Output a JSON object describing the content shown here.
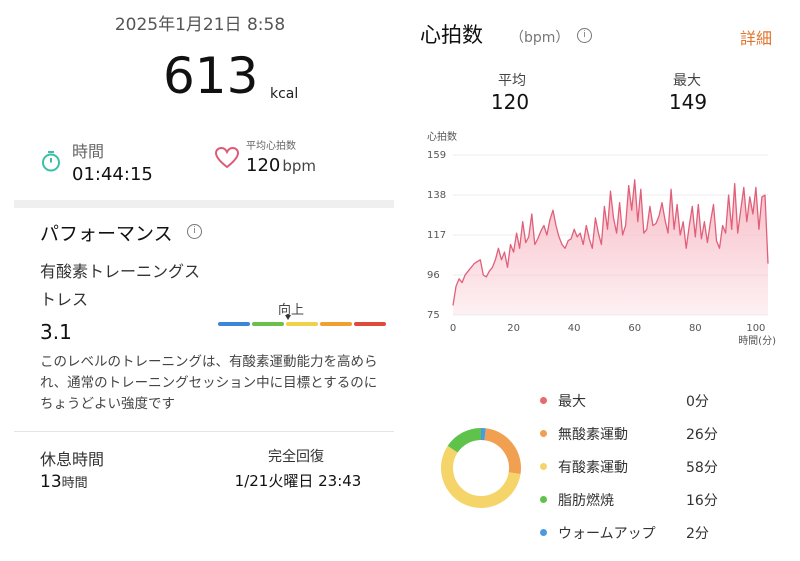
{
  "summary": {
    "datetime": "2025年1月21日 8:58",
    "calories": "613",
    "calories_unit": "kcal",
    "time_label": "時間",
    "time_value": "01:44:15",
    "avg_hr_label": "平均心拍数",
    "avg_hr_value": "120",
    "avg_hr_unit": "bpm"
  },
  "performance": {
    "title": "パフォーマンス",
    "stress_label": "有酸素トレーニングストレス",
    "stress_value": "3.1",
    "scale_label": "向上",
    "scale_colors": [
      "#3a86d8",
      "#6cc04a",
      "#f0d24a",
      "#f0a030",
      "#e04a3a"
    ],
    "description": "このレベルのトレーニングは、有酸素運動能力を高められ、通常のトレーニングセッション中に目標とするのにちょうどよい強度です",
    "rest_label": "休息時間",
    "rest_value": "13",
    "rest_unit": "時間",
    "recovery_label": "完全回復",
    "recovery_value": "1/21火曜日 23:43"
  },
  "heart_rate": {
    "title": "心拍数",
    "unit": "（bpm）",
    "detail_link": "詳細",
    "avg_label": "平均",
    "avg_value": "120",
    "max_label": "最大",
    "max_value": "149"
  },
  "chart_data": {
    "type": "area",
    "ylabel": "心拍数",
    "xlabel": "時間(分)",
    "yticks": [
      75,
      96,
      117,
      138,
      159
    ],
    "xticks": [
      0,
      20,
      40,
      60,
      80,
      100
    ],
    "xlim": [
      0,
      104
    ],
    "ylim": [
      75,
      159
    ],
    "line_color": "#e0607a",
    "fill_color": "#f7b9c4",
    "series": [
      {
        "x": [
          0,
          1,
          2,
          3,
          4,
          5,
          6,
          7,
          8,
          9,
          10,
          11,
          12,
          13,
          14,
          15,
          16,
          17,
          18,
          19,
          20,
          21,
          22,
          23,
          24,
          25,
          26,
          27,
          28,
          29,
          30,
          31,
          32,
          33,
          34,
          35,
          36,
          37,
          38,
          39,
          40,
          41,
          42,
          43,
          44,
          45,
          46,
          47,
          48,
          49,
          50,
          51,
          52,
          53,
          54,
          55,
          56,
          57,
          58,
          59,
          60,
          61,
          62,
          63,
          64,
          65,
          66,
          67,
          68,
          69,
          70,
          71,
          72,
          73,
          74,
          75,
          76,
          77,
          78,
          79,
          80,
          81,
          82,
          83,
          84,
          85,
          86,
          87,
          88,
          89,
          90,
          91,
          92,
          93,
          94,
          95,
          96,
          97,
          98,
          99,
          100,
          101,
          102,
          103,
          104
        ],
        "y": [
          80,
          90,
          94,
          92,
          96,
          98,
          100,
          102,
          103,
          104,
          96,
          95,
          98,
          100,
          104,
          110,
          104,
          108,
          100,
          112,
          108,
          118,
          110,
          124,
          113,
          116,
          128,
          112,
          115,
          119,
          122,
          117,
          125,
          130,
          122,
          116,
          112,
          110,
          114,
          115,
          120,
          116,
          118,
          112,
          122,
          115,
          110,
          126,
          118,
          112,
          132,
          120,
          140,
          126,
          118,
          134,
          117,
          122,
          143,
          130,
          146,
          124,
          141,
          118,
          120,
          132,
          122,
          123,
          127,
          134,
          125,
          118,
          141,
          120,
          133,
          117,
          124,
          110,
          122,
          132,
          116,
          133,
          115,
          124,
          113,
          124,
          133,
          114,
          110,
          122,
          118,
          138,
          120,
          144,
          118,
          130,
          142,
          124,
          137,
          128,
          142,
          120,
          137,
          138,
          102
        ]
      }
    ]
  },
  "zones": {
    "items": [
      {
        "name": "最大",
        "value": "0分",
        "minutes": 0,
        "color": "#e86a6a"
      },
      {
        "name": "無酸素運動",
        "value": "26分",
        "minutes": 26,
        "color": "#f0a050"
      },
      {
        "name": "有酸素運動",
        "value": "58分",
        "minutes": 58,
        "color": "#f5d56a"
      },
      {
        "name": "脂肪燃焼",
        "value": "16分",
        "minutes": 16,
        "color": "#5fc24a"
      },
      {
        "name": "ウォームアップ",
        "value": "2分",
        "minutes": 2,
        "color": "#4a9ae0"
      }
    ]
  }
}
